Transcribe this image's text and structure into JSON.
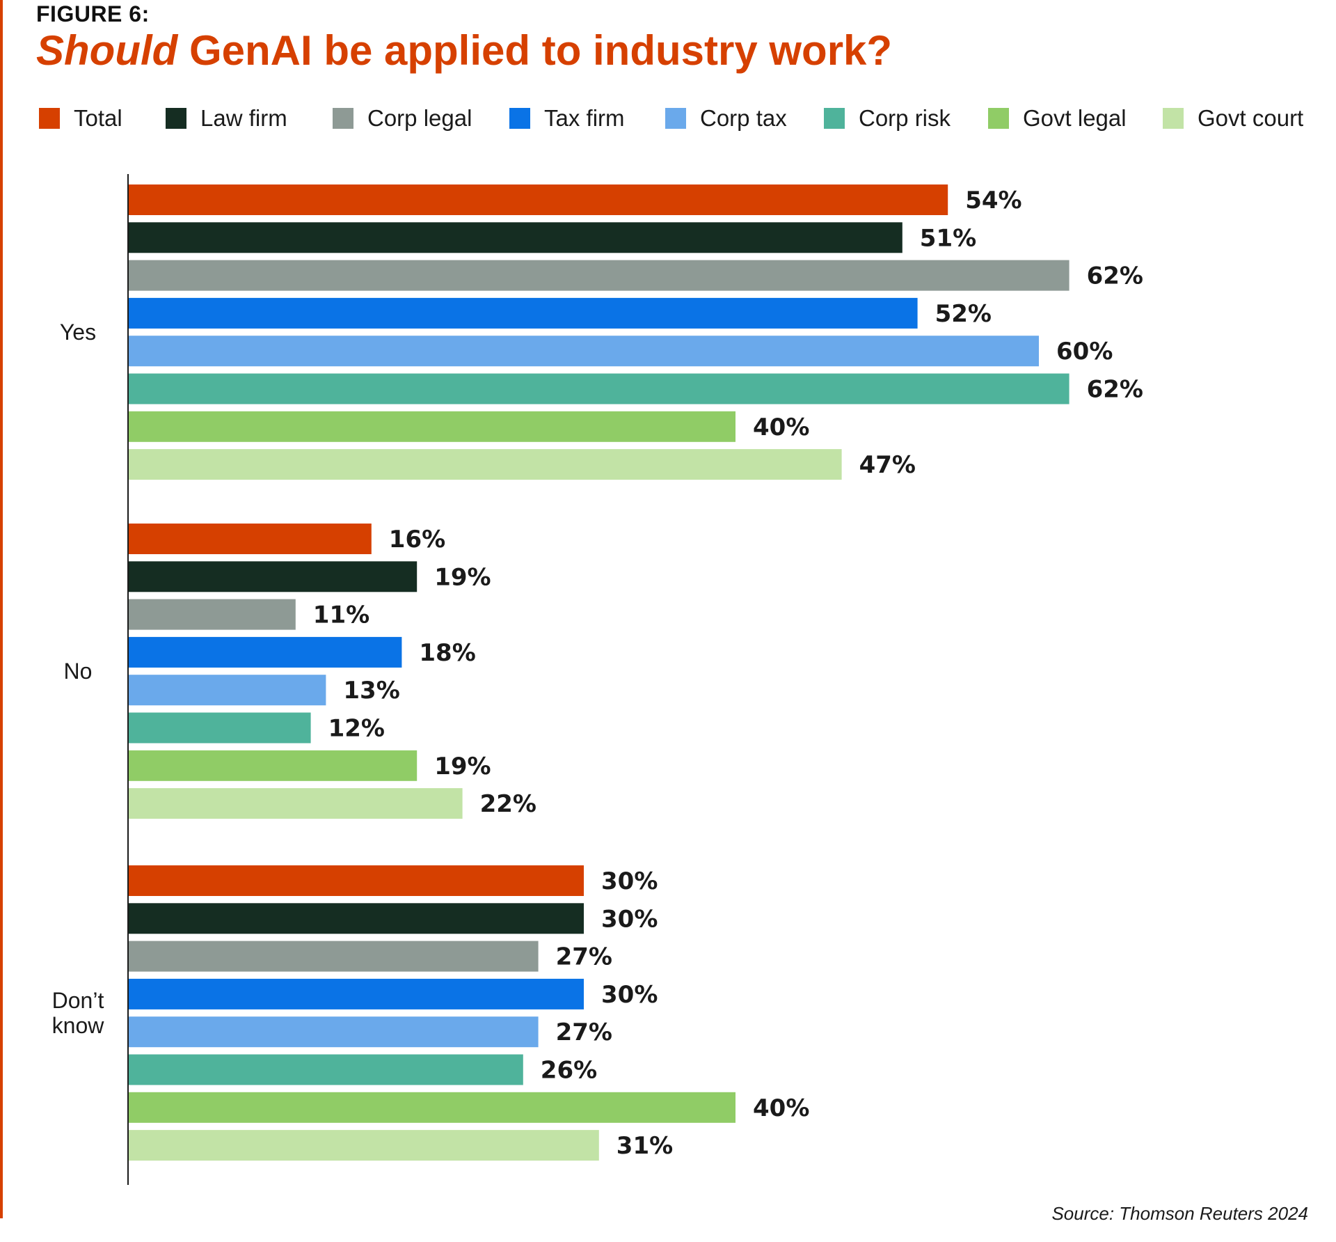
{
  "figure_label": "FIGURE 6:",
  "title": {
    "emphasis": "Should",
    "rest": " GenAI be applied to industry work?"
  },
  "source": "Source: Thomson Reuters 2024",
  "colors": {
    "accent": "#d64000",
    "series": [
      "#d64000",
      "#152d22",
      "#8e9a95",
      "#0a73e6",
      "#6aa9eb",
      "#4fb39b",
      "#90cc66",
      "#c2e3a6"
    ]
  },
  "chart_data": {
    "type": "bar",
    "orientation": "horizontal",
    "title": "Should GenAI be applied to industry work?",
    "legend_position": "top",
    "categories": [
      [
        "Yes"
      ],
      [
        "No"
      ],
      [
        "Don’t",
        "know"
      ]
    ],
    "value_suffix": "%",
    "xlim": [
      0,
      100
    ],
    "grid": false,
    "series": [
      {
        "name": "Total",
        "values": [
          54,
          16,
          30
        ]
      },
      {
        "name": "Law firm",
        "values": [
          51,
          19,
          30
        ]
      },
      {
        "name": "Corp legal",
        "values": [
          62,
          11,
          27
        ]
      },
      {
        "name": "Tax firm",
        "values": [
          52,
          18,
          30
        ]
      },
      {
        "name": "Corp tax",
        "values": [
          60,
          13,
          27
        ]
      },
      {
        "name": "Corp risk",
        "values": [
          62,
          12,
          26
        ]
      },
      {
        "name": "Govt legal",
        "values": [
          40,
          19,
          40
        ]
      },
      {
        "name": "Govt court",
        "values": [
          47,
          22,
          31
        ]
      }
    ]
  }
}
